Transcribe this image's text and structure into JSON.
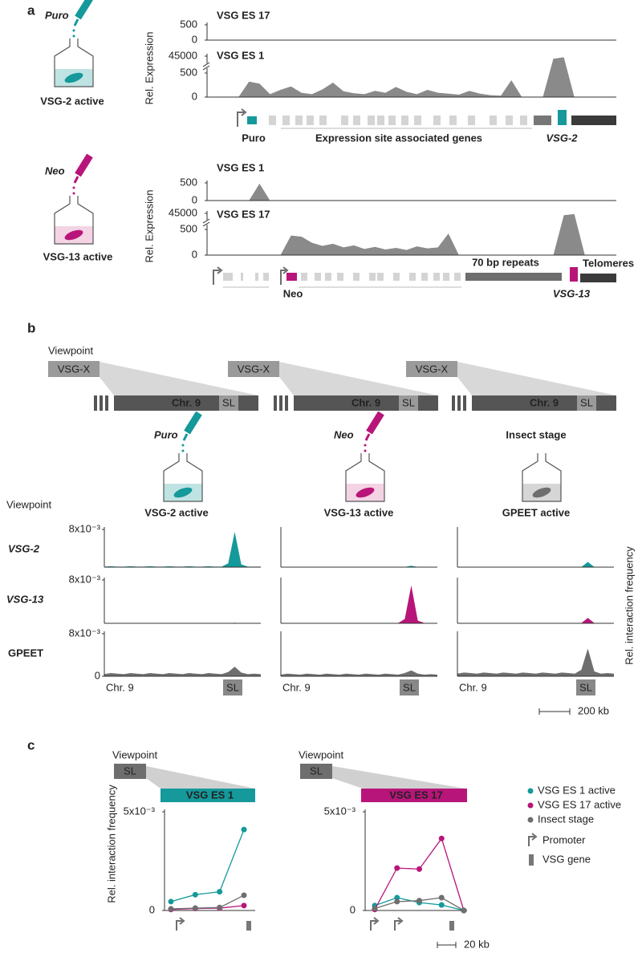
{
  "figure": {
    "panel_labels": [
      "a",
      "b",
      "c"
    ],
    "a": {
      "y_label": "Rel. Expression",
      "conditions": [
        {
          "drug": "Puro",
          "state": "VSG-2 active"
        },
        {
          "drug": "Neo",
          "state": "VSG-13 active"
        }
      ],
      "map1": {
        "resistance": "Puro",
        "genes": "Expression site associated  genes",
        "vsg": "VSG-2"
      },
      "map2": {
        "resistance": "Neo",
        "repeats": "70 bp repeats",
        "vsg": "VSG-13",
        "telomeres": "Telomeres"
      }
    },
    "b": {
      "viewpoint": "Viewpoint",
      "viewpoint_box": "VSG-X",
      "chromosome": "Chr. 9",
      "sl": "SL",
      "conditions": [
        {
          "drug": "Puro",
          "state": "VSG-2 active"
        },
        {
          "drug": "Neo",
          "state": "VSG-13 active"
        },
        {
          "drug": "Insect stage",
          "state": "GPEET active"
        }
      ],
      "row_header": "Viewpoint",
      "rows": [
        "VSG-2",
        "VSG-13",
        "GPEET"
      ],
      "y_label": "Rel. interaction frequency",
      "scale": "200 kb"
    },
    "c": {
      "viewpoint": "Viewpoint",
      "sl": "SL",
      "y_label": "Rel. interaction frequency",
      "promoter": "Promoter",
      "vsg_gene": "VSG gene",
      "scale": "20 kb"
    }
  },
  "chart_data": [
    {
      "type": "area",
      "title": "VSG ES 17",
      "title_color": "#b8157a",
      "color": "#8a8a8a",
      "ylim": [
        0,
        500
      ],
      "yticks": [
        0,
        500
      ],
      "values": [
        0,
        0,
        0,
        0,
        0,
        0,
        0,
        0,
        4,
        0,
        0,
        0,
        0,
        0,
        0,
        0,
        0,
        0,
        0,
        0,
        0,
        0,
        0,
        0,
        0,
        0,
        0,
        0,
        0,
        0,
        0,
        0,
        0,
        0,
        0,
        0,
        0,
        0,
        0,
        0
      ]
    },
    {
      "type": "area",
      "title": "VSG ES 1",
      "title_color": "#15999a",
      "color": "#8a8a8a",
      "ylim": [
        0,
        45000
      ],
      "yticks": [
        0,
        500,
        45000
      ],
      "axis_break": 500,
      "values": [
        0,
        0,
        0,
        0,
        320,
        280,
        60,
        150,
        220,
        90,
        60,
        160,
        300,
        120,
        80,
        60,
        130,
        90,
        210,
        110,
        60,
        150,
        90,
        70,
        50,
        130,
        70,
        40,
        30,
        350,
        0,
        0,
        0,
        38000,
        42000,
        0,
        0,
        0,
        0,
        0
      ]
    },
    {
      "type": "area",
      "title": "VSG ES 1",
      "title_color": "#15999a",
      "color": "#8a8a8a",
      "ylim": [
        0,
        500
      ],
      "yticks": [
        0,
        500
      ],
      "values": [
        0,
        0,
        0,
        0,
        0,
        480,
        0,
        0,
        0,
        0,
        0,
        0,
        0,
        0,
        0,
        8,
        0,
        0,
        0,
        0,
        0,
        0,
        0,
        0,
        0,
        0,
        0,
        0,
        0,
        0,
        0,
        0,
        0,
        0,
        0,
        0,
        0,
        0,
        0,
        0
      ]
    },
    {
      "type": "area",
      "title": "VSG ES 17",
      "title_color": "#b8157a",
      "color": "#8a8a8a",
      "ylim": [
        0,
        45000
      ],
      "yticks": [
        0,
        500,
        45000
      ],
      "axis_break": 500,
      "values": [
        0,
        0,
        0,
        0,
        0,
        0,
        0,
        0,
        380,
        360,
        240,
        180,
        220,
        150,
        190,
        120,
        160,
        110,
        140,
        100,
        170,
        130,
        150,
        420,
        0,
        0,
        0,
        0,
        0,
        0,
        0,
        0,
        0,
        0,
        40000,
        43000,
        0,
        0,
        0,
        0
      ]
    },
    {
      "type": "area",
      "color": "#15999a",
      "ylim": [
        0,
        0.008
      ],
      "yticks": [
        {
          "value": 0.008,
          "label": "8x10⁻³"
        }
      ],
      "values": [
        0.0001,
        0.0002,
        0.0001,
        0.0001,
        0.0002,
        0.0001,
        0.0001,
        0.0002,
        0.0001,
        0.0001,
        0.0002,
        0.0001,
        0.0001,
        0.0002,
        0.0001,
        0.0001,
        0.0002,
        0.0001,
        0.0001,
        0.0008,
        0.0075,
        0.0006,
        0.0001,
        0.0001,
        0.0001
      ]
    },
    {
      "type": "area",
      "color": "#15999a",
      "ylim": [
        0,
        0.008
      ],
      "values": [
        5e-05,
        5e-05,
        5e-05,
        5e-05,
        5e-05,
        5e-05,
        5e-05,
        5e-05,
        5e-05,
        5e-05,
        5e-05,
        5e-05,
        5e-05,
        5e-05,
        5e-05,
        5e-05,
        5e-05,
        5e-05,
        5e-05,
        5e-05,
        0.0003,
        5e-05,
        5e-05,
        5e-05,
        5e-05
      ]
    },
    {
      "type": "area",
      "color": "#15999a",
      "ylim": [
        0,
        0.008
      ],
      "values": [
        3e-05,
        3e-05,
        3e-05,
        3e-05,
        3e-05,
        3e-05,
        3e-05,
        3e-05,
        3e-05,
        3e-05,
        3e-05,
        3e-05,
        3e-05,
        3e-05,
        3e-05,
        3e-05,
        3e-05,
        3e-05,
        3e-05,
        3e-05,
        0.0011,
        3e-05,
        3e-05,
        3e-05,
        3e-05
      ]
    },
    {
      "type": "area",
      "color": "#b8157a",
      "ylim": [
        0,
        0.008
      ],
      "yticks": [
        {
          "value": 0.008,
          "label": "8x10⁻³"
        }
      ],
      "values": [
        3e-05,
        3e-05,
        3e-05,
        3e-05,
        3e-05,
        3e-05,
        3e-05,
        3e-05,
        3e-05,
        3e-05,
        3e-05,
        3e-05,
        3e-05,
        3e-05,
        3e-05,
        3e-05,
        3e-05,
        3e-05,
        3e-05,
        3e-05,
        0.0001,
        3e-05,
        3e-05,
        3e-05,
        3e-05
      ]
    },
    {
      "type": "area",
      "color": "#b8157a",
      "ylim": [
        0,
        0.008
      ],
      "values": [
        5e-05,
        5e-05,
        5e-05,
        5e-05,
        5e-05,
        5e-05,
        5e-05,
        5e-05,
        5e-05,
        5e-05,
        5e-05,
        5e-05,
        5e-05,
        5e-05,
        5e-05,
        5e-05,
        5e-05,
        5e-05,
        5e-05,
        0.0008,
        0.007,
        0.0005,
        5e-05,
        5e-05,
        5e-05
      ]
    },
    {
      "type": "area",
      "color": "#b8157a",
      "ylim": [
        0,
        0.008
      ],
      "values": [
        3e-05,
        3e-05,
        3e-05,
        3e-05,
        3e-05,
        3e-05,
        3e-05,
        3e-05,
        3e-05,
        3e-05,
        3e-05,
        3e-05,
        3e-05,
        3e-05,
        3e-05,
        3e-05,
        3e-05,
        3e-05,
        3e-05,
        3e-05,
        0.001,
        3e-05,
        3e-05,
        3e-05,
        3e-05
      ]
    },
    {
      "type": "area",
      "color": "#6e6e6e",
      "ylim": [
        0,
        0.008
      ],
      "yticks": [
        0,
        {
          "value": 0.008,
          "label": "8x10⁻³"
        }
      ],
      "values": [
        0.0004,
        0.0006,
        0.0005,
        0.0004,
        0.0006,
        0.0005,
        0.0004,
        0.0006,
        0.0005,
        0.0004,
        0.0006,
        0.0005,
        0.0004,
        0.0006,
        0.0005,
        0.0004,
        0.0006,
        0.0005,
        0.0004,
        0.0008,
        0.0018,
        0.0007,
        0.0004,
        0.0005,
        0.0004
      ]
    },
    {
      "type": "area",
      "color": "#6e6e6e",
      "ylim": [
        0,
        0.008
      ],
      "values": [
        0.0003,
        0.0005,
        0.0004,
        0.0003,
        0.0005,
        0.0004,
        0.0003,
        0.0005,
        0.0004,
        0.0003,
        0.0005,
        0.0004,
        0.0003,
        0.0005,
        0.0004,
        0.0003,
        0.0005,
        0.0004,
        0.0003,
        0.0006,
        0.0011,
        0.0005,
        0.0003,
        0.0004,
        0.0003
      ]
    },
    {
      "type": "area",
      "color": "#6e6e6e",
      "ylim": [
        0,
        0.008
      ],
      "values": [
        0.0005,
        0.0007,
        0.0006,
        0.0005,
        0.0007,
        0.0006,
        0.0005,
        0.0007,
        0.0006,
        0.0005,
        0.0007,
        0.0006,
        0.0005,
        0.0007,
        0.0006,
        0.0005,
        0.0007,
        0.0006,
        0.0005,
        0.0012,
        0.0052,
        0.0009,
        0.0005,
        0.0006,
        0.0005
      ]
    },
    {
      "type": "line",
      "title": "VSG ES 1",
      "title_fill": "#15999a",
      "ylim": [
        0,
        0.005
      ],
      "yticks": [
        0,
        {
          "value": 0.005,
          "label": "5x10⁻³"
        }
      ],
      "series": [
        {
          "color": "#15999a",
          "values": [
            0.00045,
            0.0008,
            0.00095,
            0.0041
          ]
        },
        {
          "color": "#b8157a",
          "values": [
            5e-05,
            0.0001,
            0.00012,
            0.00025
          ]
        },
        {
          "color": "#6e6e6e",
          "values": [
            8e-05,
            0.00012,
            0.00015,
            0.00077
          ]
        }
      ]
    },
    {
      "type": "line",
      "title": "VSG ES 17",
      "title_fill": "#b8157a",
      "ylim": [
        0,
        0.005
      ],
      "yticks": [
        0,
        {
          "value": 0.005,
          "label": "5x10⁻³"
        }
      ],
      "legend": "right",
      "series": [
        {
          "name": "VSG ES 1 active",
          "color": "#15999a",
          "values": [
            0.00025,
            0.00065,
            0.0004,
            0.00028,
            0
          ]
        },
        {
          "name": "VSG ES 17 active",
          "color": "#b8157a",
          "values": [
            5e-05,
            0.00215,
            0.0021,
            0.00365,
            0
          ]
        },
        {
          "name": "Insect stage",
          "color": "#6e6e6e",
          "values": [
            0.0001,
            0.00045,
            0.0005,
            0.00065,
            0
          ]
        }
      ]
    }
  ]
}
